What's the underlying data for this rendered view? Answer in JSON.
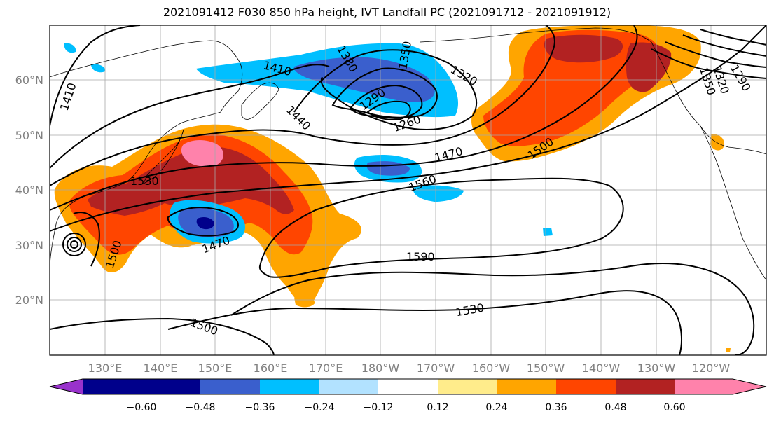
{
  "title": "2021091412 F030 850 hPa height, IVT Landfall PC (2021091712 - 2021091912)",
  "axes": {
    "lat_labels": [
      "60°N",
      "50°N",
      "40°N",
      "30°N",
      "20°N"
    ],
    "lon_labels": [
      "130°E",
      "140°E",
      "150°E",
      "160°E",
      "170°E",
      "180°W",
      "170°W",
      "160°W",
      "150°W",
      "140°W",
      "130°W",
      "120°W"
    ]
  },
  "contour_labels": [
    "1410",
    "1380",
    "1350",
    "1320",
    "1290",
    "1260",
    "1440",
    "1410",
    "1470",
    "1500",
    "1530",
    "1560",
    "1590",
    "1530",
    "1500",
    "1470",
    "1500",
    "1350",
    "1320",
    "1290"
  ],
  "colorbar": {
    "colors": [
      "#9932cc",
      "#00008b",
      "#3a5fcd",
      "#00bfff",
      "#b2e2ff",
      "#ffffff",
      "#ffffff",
      "#ffec8b",
      "#ffa500",
      "#ff4500",
      "#b22222",
      "#ff82ab"
    ],
    "tick_labels": [
      "−0.60",
      "−0.48",
      "−0.36",
      "−0.24",
      "−0.12",
      "0.12",
      "0.24",
      "0.36",
      "0.48",
      "0.60"
    ]
  },
  "colors": {
    "grid": "#a8a8a8",
    "contour": "#000000",
    "tick_label": "#808080"
  }
}
